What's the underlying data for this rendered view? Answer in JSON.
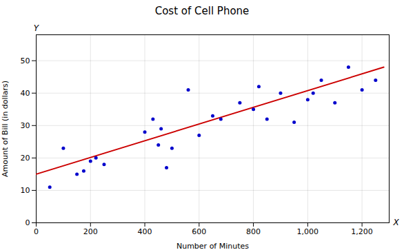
{
  "chart_data": {
    "type": "scatter",
    "title": "Cost of Cell Phone",
    "xlabel": "Number of Minutes",
    "ylabel": "Amount of Bill (in dollars)",
    "series": [
      {
        "type": "scatter",
        "color": "#0000cc",
        "x": [
          50,
          100,
          150,
          175,
          200,
          220,
          250,
          400,
          430,
          450,
          460,
          480,
          500,
          560,
          600,
          650,
          680,
          750,
          800,
          820,
          850,
          900,
          950,
          1000,
          1020,
          1050,
          1100,
          1150,
          1200,
          1250
        ],
        "values": [
          11,
          23,
          15,
          16,
          19,
          20,
          18,
          28,
          32,
          24,
          29,
          17,
          23,
          41,
          27,
          33,
          32,
          37,
          35,
          42,
          32,
          40,
          31,
          38,
          40,
          44,
          37,
          48,
          41,
          44
        ]
      },
      {
        "type": "line",
        "color": "#cc0000",
        "x": [
          0,
          1280
        ],
        "values": [
          15,
          48
        ]
      }
    ],
    "xlim": [
      0,
      1300
    ],
    "ylim": [
      0,
      58
    ],
    "xticks": [
      0,
      200,
      400,
      600,
      800,
      {
        "value": 1000,
        "label": "1,000"
      },
      {
        "value": 1200,
        "label": "1,200"
      }
    ],
    "yticks": [
      0,
      10,
      20,
      30,
      40,
      50
    ],
    "grid": true,
    "annotations": [
      "X",
      "Y"
    ]
  }
}
